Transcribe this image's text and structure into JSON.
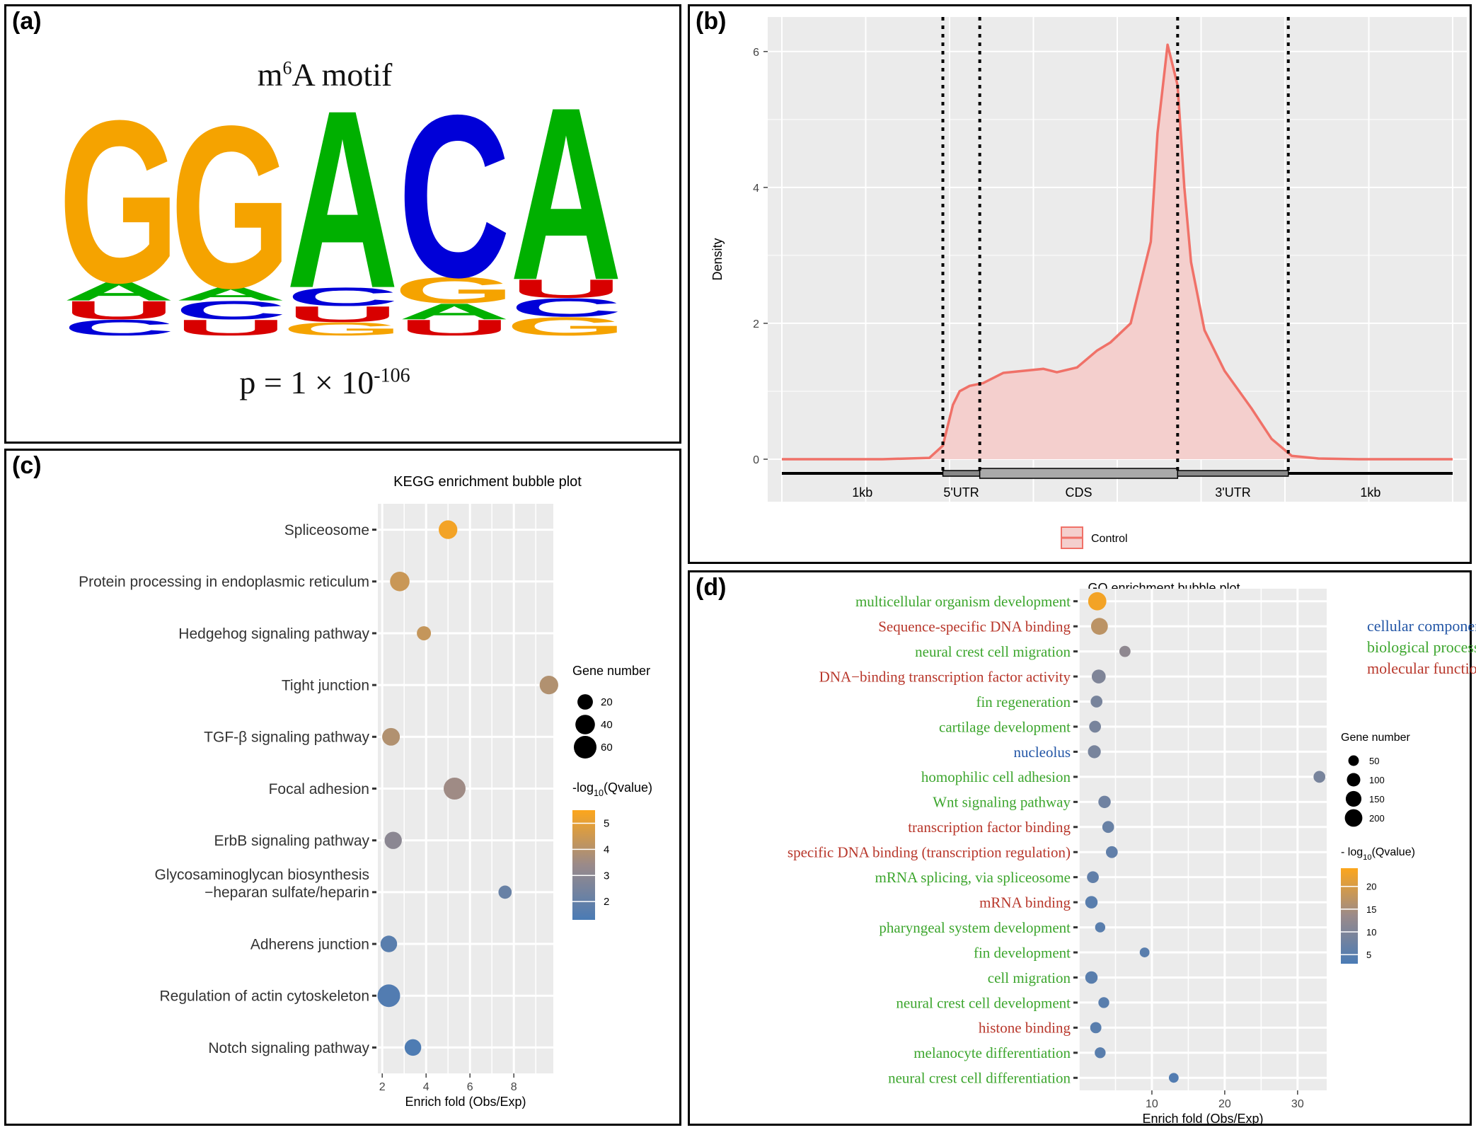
{
  "panels": {
    "a": {
      "label": "(a)",
      "title_base": "m",
      "title_sup": "6",
      "title_rest": "A motif",
      "pvalue_base": "p = 1 × 10",
      "pvalue_exp": "-106",
      "colors": {
        "A": "#00b000",
        "C": "#0000d8",
        "G": "#f5a300",
        "U": "#d80000"
      }
    },
    "b": {
      "label": "(b)"
    },
    "c": {
      "label": "(c)"
    },
    "d": {
      "label": "(d)"
    }
  },
  "chart_data": [
    {
      "type": "sequence-logo",
      "panel": "a",
      "positions": [
        [
          {
            "base": "G",
            "height": 0.62
          },
          {
            "base": "A",
            "height": 0.07
          },
          {
            "base": "U",
            "height": 0.07
          },
          {
            "base": "C",
            "height": 0.06
          }
        ],
        [
          {
            "base": "G",
            "height": 0.62
          },
          {
            "base": "A",
            "height": 0.05
          },
          {
            "base": "C",
            "height": 0.07
          },
          {
            "base": "U",
            "height": 0.06
          }
        ],
        [
          {
            "base": "A",
            "height": 0.68
          },
          {
            "base": "C",
            "height": 0.07
          },
          {
            "base": "U",
            "height": 0.06
          },
          {
            "base": "G",
            "height": 0.05
          }
        ],
        [
          {
            "base": "C",
            "height": 0.62
          },
          {
            "base": "G",
            "height": 0.1
          },
          {
            "base": "A",
            "height": 0.06
          },
          {
            "base": "U",
            "height": 0.06
          }
        ],
        [
          {
            "base": "A",
            "height": 0.66
          },
          {
            "base": "U",
            "height": 0.07
          },
          {
            "base": "C",
            "height": 0.07
          },
          {
            "base": "G",
            "height": 0.07
          }
        ]
      ]
    },
    {
      "type": "area",
      "panel": "b",
      "ylabel": "Density",
      "ylim": [
        0,
        6.3
      ],
      "yticks": [
        0,
        2,
        4,
        6
      ],
      "xlim": [
        0,
        10
      ],
      "grid": true,
      "x": [
        0,
        1.5,
        2.2,
        2.4,
        2.55,
        2.65,
        2.8,
        3.0,
        3.3,
        3.6,
        3.9,
        4.1,
        4.4,
        4.7,
        4.9,
        5.2,
        5.5,
        5.6,
        5.75,
        5.9,
        6.0,
        6.1,
        6.3,
        6.6,
        7.0,
        7.3,
        7.6,
        8.0,
        8.6,
        10
      ],
      "y": [
        0,
        0,
        0.02,
        0.2,
        0.8,
        1.0,
        1.08,
        1.12,
        1.27,
        1.3,
        1.33,
        1.28,
        1.35,
        1.6,
        1.72,
        2.0,
        3.2,
        4.8,
        6.1,
        5.5,
        4.0,
        2.9,
        1.9,
        1.3,
        0.75,
        0.3,
        0.05,
        0.01,
        0,
        0
      ],
      "vlines": [
        2.4,
        2.95,
        5.9,
        7.55
      ],
      "region_labels": [
        "1kb",
        "5'UTR",
        "CDS",
        "3'UTR",
        "1kb"
      ],
      "legend": {
        "entry": "Control",
        "placement": "bottom"
      },
      "colors": {
        "line": "#f07168",
        "fill": "#f4cfcd",
        "panel": "#ebebeb"
      }
    },
    {
      "type": "scatter",
      "panel": "c",
      "title": "KEGG enrichment bubble plot",
      "xlabel": "Enrich fold (Obs/Exp)",
      "xlim": [
        1.8,
        9.8
      ],
      "xticks": [
        2,
        4,
        6,
        8
      ],
      "categories": [
        "Spliceosome",
        "Protein processing in endoplasmic reticulum",
        "Hedgehog signaling pathway",
        "Tight junction",
        "TGF-β signaling pathway",
        "Focal adhesion",
        "ErbB signaling pathway",
        "Glycosaminoglycan biosynthesis\n−heparan sulfate/heparin",
        "Adherens junction",
        "Regulation of actin cytoskeleton",
        "Notch signaling pathway"
      ],
      "points": [
        {
          "x": 5.0,
          "gene_number": 35,
          "qvalue": 5.3
        },
        {
          "x": 2.8,
          "gene_number": 40,
          "qvalue": 4.4
        },
        {
          "x": 3.9,
          "gene_number": 15,
          "qvalue": 4.3
        },
        {
          "x": 9.6,
          "gene_number": 35,
          "qvalue": 3.9
        },
        {
          "x": 2.4,
          "gene_number": 30,
          "qvalue": 3.9
        },
        {
          "x": 5.3,
          "gene_number": 55,
          "qvalue": 3.5
        },
        {
          "x": 2.5,
          "gene_number": 28,
          "qvalue": 3.0
        },
        {
          "x": 7.6,
          "gene_number": 12,
          "qvalue": 2.1
        },
        {
          "x": 2.3,
          "gene_number": 25,
          "qvalue": 1.7
        },
        {
          "x": 2.3,
          "gene_number": 60,
          "qvalue": 1.5
        },
        {
          "x": 3.4,
          "gene_number": 25,
          "qvalue": 1.4
        }
      ],
      "size_legend": {
        "title": "Gene number",
        "values": [
          20,
          40,
          60
        ]
      },
      "color_legend": {
        "title_base": "-log",
        "title_sub": "10",
        "title_rest": "(Qvalue)",
        "ticks": [
          2,
          3,
          4,
          5
        ],
        "range": [
          1.3,
          5.5
        ],
        "low": "#4a7bb5",
        "mid": "#9a8a8a",
        "high": "#fca61c"
      }
    },
    {
      "type": "scatter",
      "panel": "d",
      "title": "GO enrichment bubble plot",
      "xlabel": "Enrich fold (Obs/Exp)",
      "xlim": [
        0,
        34
      ],
      "xticks": [
        10,
        20,
        30
      ],
      "categories": [
        {
          "label": "multicellular organism development",
          "group": "bp"
        },
        {
          "label": "Sequence-specific DNA binding",
          "group": "mf"
        },
        {
          "label": "neural crest cell migration",
          "group": "bp"
        },
        {
          "label": "DNA−binding transcription factor activity",
          "group": "mf"
        },
        {
          "label": "fin regeneration",
          "group": "bp"
        },
        {
          "label": "cartilage development",
          "group": "bp"
        },
        {
          "label": "nucleolus",
          "group": "cc"
        },
        {
          "label": "homophilic cell adhesion",
          "group": "bp"
        },
        {
          "label": "Wnt signaling pathway",
          "group": "bp"
        },
        {
          "label": "transcription factor binding",
          "group": "mf"
        },
        {
          "label": "specific DNA binding (transcription regulation)",
          "group": "mf"
        },
        {
          "label": "mRNA splicing, via spliceosome",
          "group": "bp"
        },
        {
          "label": "mRNA binding",
          "group": "mf"
        },
        {
          "label": "pharyngeal system development",
          "group": "bp"
        },
        {
          "label": "fin development",
          "group": "bp"
        },
        {
          "label": "cell migration",
          "group": "bp"
        },
        {
          "label": "neural crest cell development",
          "group": "bp"
        },
        {
          "label": "histone binding",
          "group": "mf"
        },
        {
          "label": "melanocyte differentiation",
          "group": "bp"
        },
        {
          "label": "neural crest cell differentiation",
          "group": "bp"
        }
      ],
      "points": [
        {
          "x": 2.5,
          "gene_number": 220,
          "qvalue": 23
        },
        {
          "x": 2.8,
          "gene_number": 180,
          "qvalue": 17
        },
        {
          "x": 6.3,
          "gene_number": 60,
          "qvalue": 12
        },
        {
          "x": 2.7,
          "gene_number": 110,
          "qvalue": 10
        },
        {
          "x": 2.4,
          "gene_number": 70,
          "qvalue": 9
        },
        {
          "x": 2.2,
          "gene_number": 70,
          "qvalue": 9
        },
        {
          "x": 2.1,
          "gene_number": 90,
          "qvalue": 9
        },
        {
          "x": 33,
          "gene_number": 70,
          "qvalue": 9
        },
        {
          "x": 3.5,
          "gene_number": 80,
          "qvalue": 8
        },
        {
          "x": 4.0,
          "gene_number": 70,
          "qvalue": 7
        },
        {
          "x": 4.5,
          "gene_number": 70,
          "qvalue": 6
        },
        {
          "x": 1.9,
          "gene_number": 70,
          "qvalue": 6
        },
        {
          "x": 1.7,
          "gene_number": 80,
          "qvalue": 5
        },
        {
          "x": 2.9,
          "gene_number": 45,
          "qvalue": 5
        },
        {
          "x": 9.0,
          "gene_number": 40,
          "qvalue": 5
        },
        {
          "x": 1.7,
          "gene_number": 80,
          "qvalue": 5
        },
        {
          "x": 3.4,
          "gene_number": 55,
          "qvalue": 5
        },
        {
          "x": 2.3,
          "gene_number": 60,
          "qvalue": 5
        },
        {
          "x": 2.9,
          "gene_number": 55,
          "qvalue": 5
        },
        {
          "x": 13,
          "gene_number": 40,
          "qvalue": 4
        }
      ],
      "group_legend": [
        {
          "label": "cellular component",
          "group": "cc"
        },
        {
          "label": "biological process",
          "group": "bp"
        },
        {
          "label": "molecular function",
          "group": "mf"
        }
      ],
      "group_colors": {
        "cc": "#2356a6",
        "bp": "#3da62e",
        "mf": "#b8372b"
      },
      "size_legend": {
        "title": "Gene number",
        "values": [
          50,
          100,
          150,
          200
        ]
      },
      "color_legend": {
        "title_base": "- log",
        "title_sub": "10",
        "title_rest": "(Qvalue)",
        "ticks": [
          5,
          10,
          15,
          20
        ],
        "range": [
          3,
          24
        ],
        "low": "#4a7bb5",
        "mid": "#9a8a8a",
        "high": "#fca61c"
      }
    }
  ]
}
